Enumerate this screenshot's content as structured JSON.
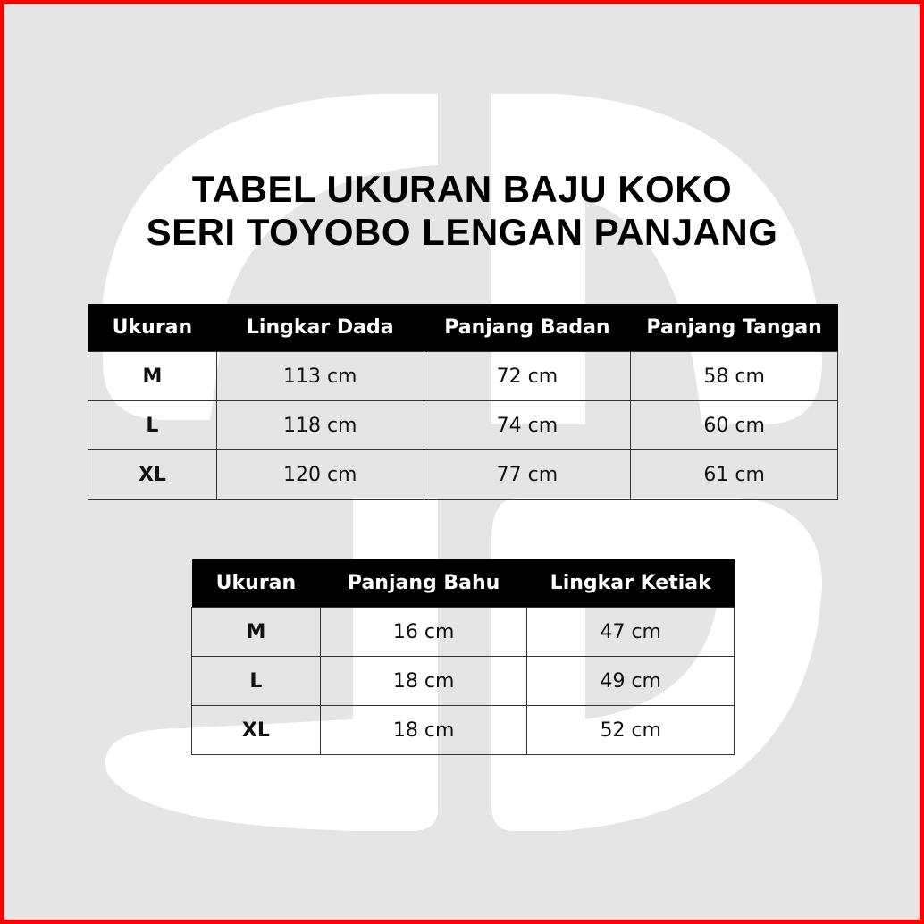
{
  "colors": {
    "frame": "#ff0000",
    "background": "#e5e5e5",
    "header": "#000000",
    "watermark": "#ffffff"
  },
  "title": {
    "line1": "TABEL UKURAN BAJU KOKO",
    "line2": "SERI TOYOBO LENGAN PANJANG"
  },
  "table1": {
    "headers": [
      "Ukuran",
      "Lingkar Dada",
      "Panjang Badan",
      "Panjang Tangan"
    ],
    "rows": [
      [
        "M",
        "113 cm",
        "72 cm",
        "58 cm"
      ],
      [
        "L",
        "118 cm",
        "74 cm",
        "60 cm"
      ],
      [
        "XL",
        "120 cm",
        "77 cm",
        "61 cm"
      ]
    ]
  },
  "table2": {
    "headers": [
      "Ukuran",
      "Panjang Bahu",
      "Lingkar Ketiak"
    ],
    "rows": [
      [
        "M",
        "16 cm",
        "47 cm"
      ],
      [
        "L",
        "18 cm",
        "49 cm"
      ],
      [
        "XL",
        "18 cm",
        "52 cm"
      ]
    ]
  }
}
